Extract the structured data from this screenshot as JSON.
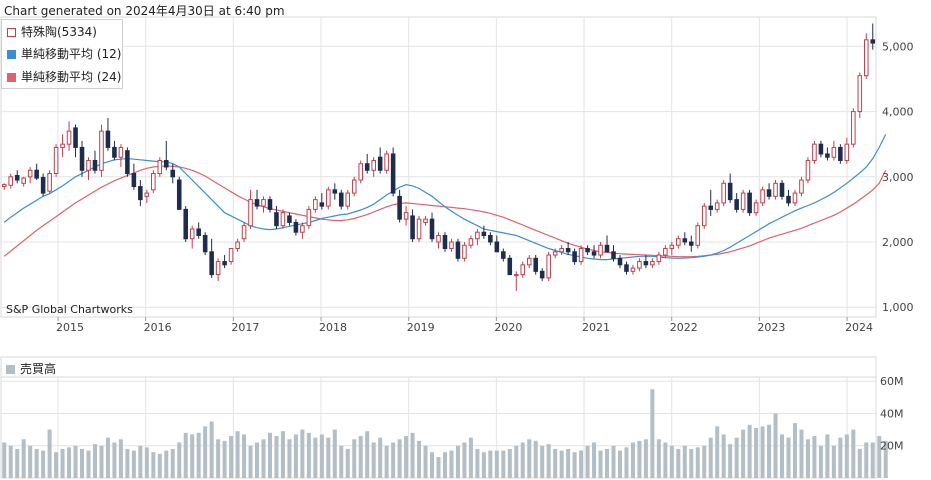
{
  "header": {
    "generated": "Chart generated on 2024年4月30日 at 6:40 pm"
  },
  "credit": "S&P Global Chartworks",
  "colors": {
    "up": "#c0404c",
    "down": "#1f2d4d",
    "sma12": "#3b8fd1",
    "sma24": "#e06070",
    "volume": "#b4bec6",
    "grid": "#e4e4e4"
  },
  "chart_data": [
    {
      "type": "candlestick",
      "legend": [
        {
          "label": "特殊陶(5334)",
          "color": "#c0404c"
        },
        {
          "label": "単純移動平均 (12)",
          "color": "#3b8fd1"
        },
        {
          "label": "単純移動平均 (24)",
          "color": "#e06070"
        }
      ],
      "x_ticks": [
        "2015",
        "2016",
        "2017",
        "2018",
        "2019",
        "2020",
        "2021",
        "2022",
        "2023",
        "2024"
      ],
      "y_ticks": [
        "1,000",
        "2,000",
        "3,000",
        "4,000",
        "5,000"
      ],
      "ylim": [
        850,
        5450
      ],
      "grid": true,
      "candles": [
        [
          2850,
          2900,
          2800,
          2880
        ],
        [
          2870,
          3050,
          2820,
          3000
        ],
        [
          3020,
          3100,
          2900,
          2950
        ],
        [
          2900,
          3000,
          2850,
          2980
        ],
        [
          3000,
          3150,
          2900,
          3100
        ],
        [
          3100,
          3200,
          2950,
          2980
        ],
        [
          2990,
          3050,
          2700,
          2750
        ],
        [
          2780,
          3100,
          2750,
          3050
        ],
        [
          3050,
          3500,
          3000,
          3450
        ],
        [
          3450,
          3650,
          3300,
          3500
        ],
        [
          3500,
          3850,
          3400,
          3700
        ],
        [
          3750,
          3800,
          3300,
          3450
        ],
        [
          3450,
          3550,
          3000,
          3100
        ],
        [
          3100,
          3300,
          2950,
          3250
        ],
        [
          3250,
          3400,
          3050,
          3100
        ],
        [
          3100,
          3800,
          3000,
          3700
        ],
        [
          3700,
          3900,
          3400,
          3450
        ],
        [
          3450,
          3550,
          3250,
          3300
        ],
        [
          3300,
          3500,
          3150,
          3450
        ],
        [
          3400,
          3450,
          3000,
          3050
        ],
        [
          3050,
          3200,
          2800,
          2850
        ],
        [
          2850,
          2950,
          2550,
          2650
        ],
        [
          2700,
          2800,
          2600,
          2750
        ],
        [
          2800,
          3100,
          2750,
          3050
        ],
        [
          3050,
          3300,
          3000,
          3250
        ],
        [
          3250,
          3550,
          3100,
          3150
        ],
        [
          3100,
          3200,
          2900,
          3000
        ],
        [
          2950,
          3000,
          2500,
          2500
        ],
        [
          2500,
          2550,
          2000,
          2050
        ],
        [
          2050,
          2250,
          1900,
          2200
        ],
        [
          2200,
          2300,
          2050,
          2100
        ],
        [
          2100,
          2150,
          1800,
          1850
        ],
        [
          1850,
          2050,
          1450,
          1500
        ],
        [
          1500,
          1750,
          1400,
          1700
        ],
        [
          1700,
          1800,
          1600,
          1650
        ],
        [
          1700,
          1900,
          1650,
          1900
        ],
        [
          1900,
          2050,
          1850,
          2000
        ],
        [
          2050,
          2300,
          2000,
          2250
        ],
        [
          2250,
          2800,
          2200,
          2650
        ],
        [
          2650,
          2800,
          2500,
          2550
        ],
        [
          2550,
          2700,
          2450,
          2650
        ],
        [
          2650,
          2700,
          2450,
          2500
        ],
        [
          2450,
          2550,
          2200,
          2250
        ],
        [
          2250,
          2500,
          2200,
          2450
        ],
        [
          2400,
          2450,
          2250,
          2300
        ],
        [
          2300,
          2350,
          2100,
          2150
        ],
        [
          2150,
          2300,
          2050,
          2250
        ],
        [
          2250,
          2550,
          2200,
          2500
        ],
        [
          2500,
          2700,
          2450,
          2650
        ],
        [
          2600,
          2750,
          2500,
          2550
        ],
        [
          2550,
          2850,
          2500,
          2800
        ],
        [
          2800,
          2900,
          2650,
          2750
        ],
        [
          2750,
          2800,
          2500,
          2550
        ],
        [
          2550,
          2800,
          2500,
          2750
        ],
        [
          2750,
          3000,
          2700,
          2950
        ],
        [
          2950,
          3250,
          2900,
          3200
        ],
        [
          3200,
          3350,
          3050,
          3100
        ],
        [
          3100,
          3300,
          3000,
          3250
        ],
        [
          3300,
          3450,
          3050,
          3100
        ],
        [
          3100,
          3400,
          3050,
          3350
        ],
        [
          3350,
          3450,
          2700,
          2750
        ],
        [
          2700,
          2800,
          2300,
          2350
        ],
        [
          2350,
          2550,
          2250,
          2450
        ],
        [
          2400,
          2500,
          2000,
          2050
        ],
        [
          2050,
          2400,
          2000,
          2350
        ],
        [
          2300,
          2400,
          2250,
          2350
        ],
        [
          2350,
          2450,
          2000,
          2050
        ],
        [
          2000,
          2150,
          1900,
          2100
        ],
        [
          2100,
          2150,
          1850,
          1900
        ],
        [
          1900,
          2050,
          1850,
          2000
        ],
        [
          2000,
          2050,
          1700,
          1750
        ],
        [
          1750,
          2000,
          1700,
          1950
        ],
        [
          1950,
          2100,
          1900,
          2050
        ],
        [
          2050,
          2200,
          1950,
          2150
        ],
        [
          2150,
          2250,
          2050,
          2100
        ],
        [
          2100,
          2150,
          1950,
          2000
        ],
        [
          2000,
          2100,
          1850,
          1850
        ],
        [
          1850,
          1900,
          1700,
          1750
        ],
        [
          1750,
          1800,
          1500,
          1500
        ],
        [
          1500,
          1550,
          1250,
          1500
        ],
        [
          1500,
          1700,
          1450,
          1650
        ],
        [
          1650,
          1800,
          1600,
          1750
        ],
        [
          1750,
          1800,
          1500,
          1550
        ],
        [
          1550,
          1600,
          1400,
          1450
        ],
        [
          1450,
          1850,
          1400,
          1800
        ],
        [
          1800,
          1900,
          1750,
          1850
        ],
        [
          1850,
          1950,
          1800,
          1900
        ],
        [
          1900,
          2000,
          1800,
          1850
        ],
        [
          1850,
          1900,
          1650,
          1700
        ],
        [
          1700,
          1950,
          1650,
          1900
        ],
        [
          1900,
          1950,
          1800,
          1850
        ],
        [
          1850,
          1950,
          1750,
          1800
        ],
        [
          1800,
          2000,
          1750,
          1950
        ],
        [
          1950,
          2100,
          1850,
          1850
        ],
        [
          1850,
          1950,
          1700,
          1750
        ],
        [
          1750,
          1800,
          1600,
          1650
        ],
        [
          1650,
          1700,
          1500,
          1550
        ],
        [
          1550,
          1650,
          1500,
          1600
        ],
        [
          1600,
          1750,
          1550,
          1700
        ],
        [
          1700,
          1800,
          1600,
          1650
        ],
        [
          1650,
          1750,
          1600,
          1700
        ],
        [
          1700,
          1850,
          1650,
          1800
        ],
        [
          1800,
          1950,
          1750,
          1900
        ],
        [
          1900,
          2000,
          1800,
          1950
        ],
        [
          1950,
          2100,
          1900,
          2050
        ],
        [
          2050,
          2150,
          1950,
          2000
        ],
        [
          2000,
          2100,
          1850,
          1950
        ],
        [
          1950,
          2300,
          1900,
          2250
        ],
        [
          2250,
          2600,
          2200,
          2550
        ],
        [
          2550,
          2800,
          2400,
          2500
        ],
        [
          2500,
          2650,
          2450,
          2600
        ],
        [
          2600,
          2950,
          2550,
          2900
        ],
        [
          2900,
          3050,
          2600,
          2650
        ],
        [
          2650,
          2750,
          2450,
          2500
        ],
        [
          2500,
          2800,
          2450,
          2750
        ],
        [
          2750,
          2800,
          2400,
          2450
        ],
        [
          2450,
          2650,
          2400,
          2600
        ],
        [
          2600,
          2850,
          2550,
          2800
        ],
        [
          2800,
          2900,
          2650,
          2700
        ],
        [
          2700,
          2950,
          2650,
          2900
        ],
        [
          2900,
          2950,
          2650,
          2700
        ],
        [
          2700,
          2800,
          2550,
          2600
        ],
        [
          2600,
          2800,
          2550,
          2750
        ],
        [
          2750,
          3000,
          2700,
          2950
        ],
        [
          2950,
          3300,
          2900,
          3250
        ],
        [
          3250,
          3550,
          3200,
          3500
        ],
        [
          3500,
          3550,
          3300,
          3350
        ],
        [
          3350,
          3450,
          3250,
          3300
        ],
        [
          3300,
          3550,
          3250,
          3450
        ],
        [
          3450,
          3500,
          3200,
          3250
        ],
        [
          3250,
          3600,
          3200,
          3500
        ],
        [
          3500,
          4050,
          3450,
          4000
        ],
        [
          4000,
          4600,
          3900,
          4550
        ],
        [
          4550,
          5200,
          4500,
          5100
        ],
        [
          5100,
          5350,
          4950,
          5050
        ]
      ],
      "sma12": [
        2300,
        2380,
        2450,
        2520,
        2580,
        2640,
        2700,
        2740,
        2800,
        2860,
        2930,
        3000,
        3050,
        3100,
        3150,
        3200,
        3230,
        3260,
        3270,
        3280,
        3270,
        3260,
        3250,
        3240,
        3230,
        3230,
        3200,
        3150,
        3050,
        2950,
        2850,
        2750,
        2650,
        2550,
        2450,
        2400,
        2350,
        2300,
        2250,
        2220,
        2200,
        2190,
        2200,
        2220,
        2240,
        2260,
        2280,
        2300,
        2330,
        2360,
        2380,
        2400,
        2420,
        2430,
        2460,
        2490,
        2530,
        2580,
        2650,
        2720,
        2780,
        2840,
        2880,
        2860,
        2820,
        2760,
        2700,
        2620,
        2540,
        2470,
        2410,
        2350,
        2300,
        2250,
        2200,
        2180,
        2160,
        2140,
        2120,
        2100,
        2060,
        2020,
        1980,
        1940,
        1900,
        1870,
        1840,
        1810,
        1790,
        1770,
        1750,
        1740,
        1730,
        1730,
        1740,
        1750,
        1760,
        1770,
        1780,
        1780,
        1780,
        1770,
        1760,
        1755,
        1750,
        1755,
        1760,
        1770,
        1780,
        1800,
        1830,
        1870,
        1920,
        1980,
        2040,
        2100,
        2160,
        2220,
        2280,
        2330,
        2380,
        2430,
        2480,
        2520,
        2560,
        2600,
        2650,
        2700,
        2760,
        2830,
        2900,
        2980,
        3060,
        3150,
        3280,
        3450,
        3650
      ],
      "sma24": [
        1780,
        1860,
        1940,
        2020,
        2100,
        2180,
        2250,
        2320,
        2390,
        2460,
        2530,
        2600,
        2660,
        2720,
        2780,
        2840,
        2890,
        2940,
        2980,
        3020,
        3060,
        3100,
        3130,
        3150,
        3160,
        3165,
        3160,
        3150,
        3130,
        3100,
        3060,
        3010,
        2950,
        2890,
        2830,
        2770,
        2710,
        2660,
        2610,
        2570,
        2540,
        2510,
        2490,
        2470,
        2450,
        2430,
        2410,
        2390,
        2370,
        2350,
        2340,
        2330,
        2330,
        2340,
        2360,
        2390,
        2420,
        2460,
        2500,
        2540,
        2570,
        2590,
        2600,
        2590,
        2580,
        2570,
        2560,
        2550,
        2540,
        2530,
        2520,
        2510,
        2495,
        2480,
        2460,
        2440,
        2410,
        2380,
        2340,
        2300,
        2260,
        2220,
        2180,
        2140,
        2100,
        2060,
        2020,
        1980,
        1950,
        1920,
        1890,
        1870,
        1850,
        1840,
        1830,
        1820,
        1815,
        1810,
        1805,
        1800,
        1795,
        1790,
        1785,
        1780,
        1775,
        1775,
        1775,
        1780,
        1790,
        1800,
        1810,
        1830,
        1850,
        1880,
        1910,
        1940,
        1980,
        2020,
        2060,
        2090,
        2120,
        2150,
        2180,
        2210,
        2250,
        2290,
        2330,
        2370,
        2410,
        2460,
        2520,
        2580,
        2650,
        2720,
        2800,
        2900,
        3100
      ]
    },
    {
      "type": "bar",
      "legend": [
        {
          "label": "売買高",
          "color": "#b4bec6"
        }
      ],
      "y_ticks": [
        "20M",
        "40M",
        "60M"
      ],
      "ylim": [
        0,
        75
      ],
      "volumes": [
        22,
        20,
        18,
        24,
        20,
        18,
        17,
        30,
        16,
        18,
        19,
        20,
        18,
        17,
        21,
        20,
        25,
        22,
        24,
        18,
        17,
        20,
        19,
        16,
        15,
        17,
        18,
        22,
        28,
        27,
        28,
        32,
        35,
        24,
        23,
        26,
        29,
        27,
        20,
        22,
        24,
        28,
        26,
        29,
        24,
        27,
        30,
        28,
        25,
        27,
        25,
        30,
        20,
        18,
        24,
        26,
        29,
        22,
        25,
        20,
        22,
        24,
        26,
        28,
        23,
        20,
        16,
        13,
        16,
        17,
        20,
        22,
        25,
        18,
        16,
        17,
        17,
        17,
        18,
        20,
        22,
        24,
        23,
        20,
        21,
        18,
        17,
        18,
        16,
        17,
        20,
        22,
        17,
        18,
        20,
        17,
        19,
        22,
        23,
        24,
        55,
        24,
        22,
        20,
        18,
        20,
        18,
        19,
        20,
        25,
        32,
        27,
        21,
        25,
        30,
        33,
        31,
        32,
        33,
        40,
        27,
        25,
        34,
        30,
        24,
        26,
        20,
        27,
        20,
        25,
        27,
        30,
        18,
        22,
        22,
        26,
        23
      ]
    }
  ]
}
